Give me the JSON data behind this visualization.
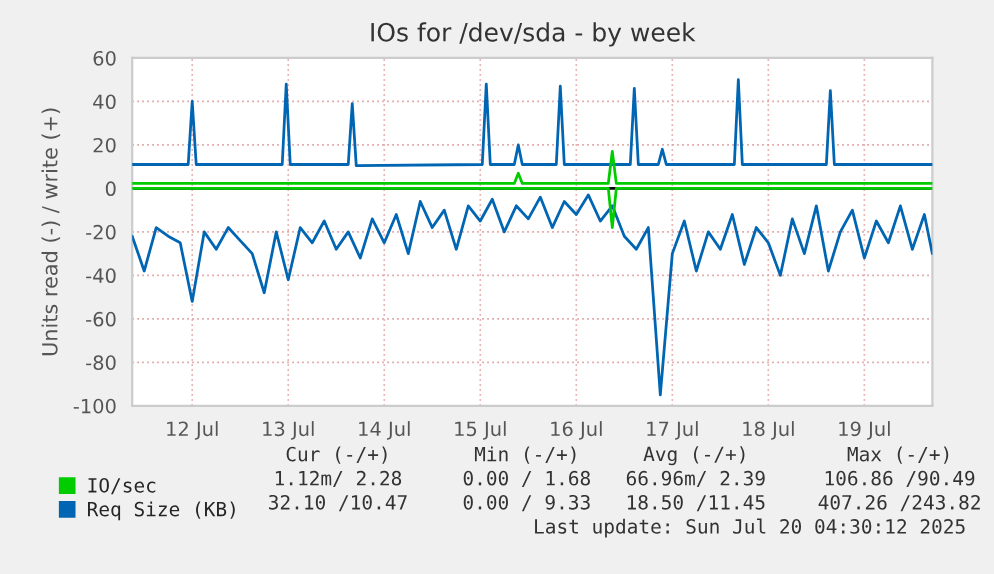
{
  "chart_data": {
    "type": "line",
    "title": "IOs for /dev/sda - by week",
    "ylabel": "Units read (-) / write (+)",
    "xlim": [
      "2025-07-11T09:00",
      "2025-07-19T17:00"
    ],
    "xticks": [
      {
        "value": "2025-07-12",
        "label": "12 Jul"
      },
      {
        "value": "2025-07-13",
        "label": "13 Jul"
      },
      {
        "value": "2025-07-14",
        "label": "14 Jul"
      },
      {
        "value": "2025-07-15",
        "label": "15 Jul"
      },
      {
        "value": "2025-07-16",
        "label": "16 Jul"
      },
      {
        "value": "2025-07-17",
        "label": "17 Jul"
      },
      {
        "value": "2025-07-18",
        "label": "18 Jul"
      },
      {
        "value": "2025-07-19",
        "label": "19 Jul"
      }
    ],
    "ylim": [
      -100,
      60
    ],
    "yticks": [
      -100,
      -80,
      -60,
      -40,
      -20,
      0,
      20,
      40,
      60
    ],
    "grid": true,
    "legend": "bottom",
    "ref_lines": [
      {
        "axis": "y",
        "value": 0,
        "color": "#000000"
      }
    ],
    "series": [
      {
        "color": "#0066b3",
        "x": [
          "2025-07-11T09:00",
          "2025-07-11T12:00",
          "2025-07-11T15:00",
          "2025-07-11T18:00",
          "2025-07-11T21:00",
          "2025-07-12T00:00",
          "2025-07-12T03:00",
          "2025-07-12T06:00",
          "2025-07-12T09:00",
          "2025-07-12T12:00",
          "2025-07-12T15:00",
          "2025-07-12T18:00",
          "2025-07-12T21:00",
          "2025-07-13T00:00",
          "2025-07-13T03:00",
          "2025-07-13T06:00",
          "2025-07-13T09:00",
          "2025-07-13T12:00",
          "2025-07-13T15:00",
          "2025-07-13T18:00",
          "2025-07-13T21:00",
          "2025-07-14T00:00",
          "2025-07-14T03:00",
          "2025-07-14T06:00",
          "2025-07-14T09:00",
          "2025-07-14T12:00",
          "2025-07-14T15:00",
          "2025-07-14T18:00",
          "2025-07-14T21:00",
          "2025-07-15T00:00",
          "2025-07-15T03:00",
          "2025-07-15T06:00",
          "2025-07-15T09:00",
          "2025-07-15T12:00",
          "2025-07-15T15:00",
          "2025-07-15T18:00",
          "2025-07-15T21:00",
          "2025-07-16T00:00",
          "2025-07-16T03:00",
          "2025-07-16T06:00",
          "2025-07-16T09:00",
          "2025-07-16T12:00",
          "2025-07-16T15:00",
          "2025-07-16T18:00",
          "2025-07-16T21:00",
          "2025-07-17T00:00",
          "2025-07-17T03:00",
          "2025-07-17T06:00",
          "2025-07-17T09:00",
          "2025-07-17T12:00",
          "2025-07-17T15:00",
          "2025-07-17T18:00",
          "2025-07-17T21:00",
          "2025-07-18T00:00",
          "2025-07-18T03:00",
          "2025-07-18T06:00",
          "2025-07-18T09:00",
          "2025-07-18T12:00",
          "2025-07-18T15:00",
          "2025-07-18T18:00",
          "2025-07-18T21:00",
          "2025-07-19T00:00",
          "2025-07-19T03:00",
          "2025-07-19T06:00",
          "2025-07-19T09:00",
          "2025-07-19T12:00",
          "2025-07-19T15:00",
          "2025-07-19T17:00"
        ],
        "values": [
          -22,
          -38,
          -18,
          -22,
          -25,
          -52,
          -20,
          -28,
          -18,
          -24,
          -30,
          -48,
          -20,
          -42,
          -18,
          -25,
          -15,
          -28,
          -20,
          -32,
          -14,
          -25,
          -12,
          -30,
          -6,
          -18,
          -10,
          -28,
          -8,
          -15,
          -5,
          -20,
          -8,
          -14,
          -4,
          -18,
          -6,
          -12,
          -3,
          -15,
          -8,
          -22,
          -28,
          -18,
          -95,
          -30,
          -15,
          -38,
          -20,
          -28,
          -12,
          -35,
          -18,
          -25,
          -40,
          -14,
          -30,
          -8,
          -38,
          -20,
          -10,
          -32,
          -15,
          -25,
          -8,
          -28,
          -12,
          -30
        ]
      },
      {
        "name": "Req Size (KB)",
        "color": "#0066b3",
        "x": [
          "2025-07-11T09:00",
          "2025-07-11T23:00",
          "2025-07-12T00:00",
          "2025-07-12T01:00",
          "2025-07-12T22:30",
          "2025-07-12T23:30",
          "2025-07-13T00:30",
          "2025-07-13T15:00",
          "2025-07-13T16:00",
          "2025-07-13T17:00",
          "2025-07-15T00:30",
          "2025-07-15T01:30",
          "2025-07-15T02:30",
          "2025-07-15T08:30",
          "2025-07-15T09:30",
          "2025-07-15T10:30",
          "2025-07-15T19:00",
          "2025-07-15T20:00",
          "2025-07-15T21:00",
          "2025-07-16T13:30",
          "2025-07-16T14:30",
          "2025-07-16T15:30",
          "2025-07-16T20:30",
          "2025-07-16T21:30",
          "2025-07-16T22:30",
          "2025-07-17T15:30",
          "2025-07-17T16:30",
          "2025-07-17T17:30",
          "2025-07-18T14:30",
          "2025-07-18T15:30",
          "2025-07-18T16:30",
          "2025-07-19T17:00"
        ],
        "values": [
          11,
          11,
          40,
          11,
          11,
          48,
          11,
          11,
          39,
          10.5,
          11,
          48,
          11,
          11,
          20,
          11,
          11,
          47,
          11,
          11,
          46,
          11,
          11,
          18,
          11,
          11,
          50,
          11,
          11,
          45,
          11,
          11
        ]
      },
      {
        "color": "#00cc00",
        "x": [
          "2025-07-11T09:00",
          "2025-07-16T08:00",
          "2025-07-16T09:00",
          "2025-07-16T10:00",
          "2025-07-19T17:00"
        ],
        "values": [
          0,
          0,
          -18,
          0,
          0
        ]
      },
      {
        "name": "IO/sec",
        "color": "#00cc00",
        "x": [
          "2025-07-11T09:00",
          "2025-07-15T08:30",
          "2025-07-15T09:30",
          "2025-07-15T10:30",
          "2025-07-16T08:00",
          "2025-07-16T09:00",
          "2025-07-16T10:00",
          "2025-07-19T17:00"
        ],
        "values": [
          2.3,
          2.3,
          7,
          2.3,
          2.3,
          17,
          2.3,
          2.3
        ]
      }
    ],
    "annotations": [
      "Cur (-/+)",
      "Min (-/+)",
      "Avg (-/+)",
      "Max (-/+)",
      "1.12m/ 2.28",
      "0.00 / 1.68",
      "66.96m/ 2.39",
      "106.86 /90.49",
      "32.10 /10.47",
      "0.00 / 9.33",
      "18.50 /11.45",
      "407.26 /243.82",
      "Last update: Sun Jul 20 04:30:12 2025"
    ]
  }
}
